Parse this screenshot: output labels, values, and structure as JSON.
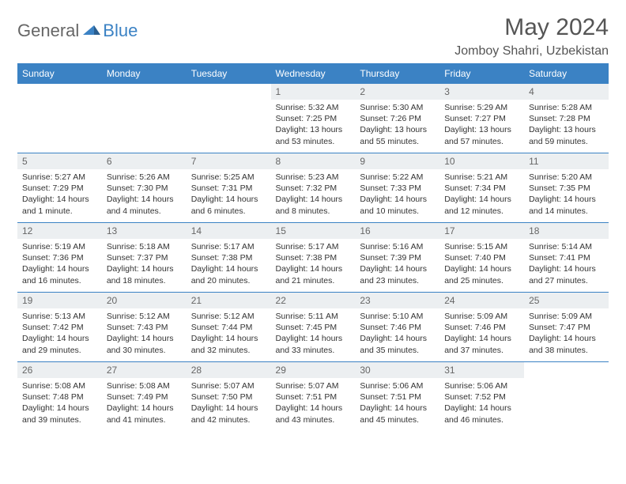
{
  "brand": {
    "part1": "General",
    "part2": "Blue",
    "accent": "#3b82c4"
  },
  "title": "May 2024",
  "location": "Jomboy Shahri, Uzbekistan",
  "dayHeaders": [
    "Sunday",
    "Monday",
    "Tuesday",
    "Wednesday",
    "Thursday",
    "Friday",
    "Saturday"
  ],
  "colors": {
    "headerBg": "#3b82c4",
    "headerText": "#ffffff",
    "dayNumBg": "#eceff1",
    "border": "#3b82c4",
    "bodyText": "#333333",
    "background": "#ffffff"
  },
  "typography": {
    "title_fontsize": 30,
    "location_fontsize": 16,
    "header_fontsize": 12,
    "daynum_fontsize": 12,
    "body_fontsize": 10.5
  },
  "startDayIndex": 3,
  "days": [
    {
      "n": "1",
      "sunrise": "Sunrise: 5:32 AM",
      "sunset": "Sunset: 7:25 PM",
      "daylight": "Daylight: 13 hours and 53 minutes."
    },
    {
      "n": "2",
      "sunrise": "Sunrise: 5:30 AM",
      "sunset": "Sunset: 7:26 PM",
      "daylight": "Daylight: 13 hours and 55 minutes."
    },
    {
      "n": "3",
      "sunrise": "Sunrise: 5:29 AM",
      "sunset": "Sunset: 7:27 PM",
      "daylight": "Daylight: 13 hours and 57 minutes."
    },
    {
      "n": "4",
      "sunrise": "Sunrise: 5:28 AM",
      "sunset": "Sunset: 7:28 PM",
      "daylight": "Daylight: 13 hours and 59 minutes."
    },
    {
      "n": "5",
      "sunrise": "Sunrise: 5:27 AM",
      "sunset": "Sunset: 7:29 PM",
      "daylight": "Daylight: 14 hours and 1 minute."
    },
    {
      "n": "6",
      "sunrise": "Sunrise: 5:26 AM",
      "sunset": "Sunset: 7:30 PM",
      "daylight": "Daylight: 14 hours and 4 minutes."
    },
    {
      "n": "7",
      "sunrise": "Sunrise: 5:25 AM",
      "sunset": "Sunset: 7:31 PM",
      "daylight": "Daylight: 14 hours and 6 minutes."
    },
    {
      "n": "8",
      "sunrise": "Sunrise: 5:23 AM",
      "sunset": "Sunset: 7:32 PM",
      "daylight": "Daylight: 14 hours and 8 minutes."
    },
    {
      "n": "9",
      "sunrise": "Sunrise: 5:22 AM",
      "sunset": "Sunset: 7:33 PM",
      "daylight": "Daylight: 14 hours and 10 minutes."
    },
    {
      "n": "10",
      "sunrise": "Sunrise: 5:21 AM",
      "sunset": "Sunset: 7:34 PM",
      "daylight": "Daylight: 14 hours and 12 minutes."
    },
    {
      "n": "11",
      "sunrise": "Sunrise: 5:20 AM",
      "sunset": "Sunset: 7:35 PM",
      "daylight": "Daylight: 14 hours and 14 minutes."
    },
    {
      "n": "12",
      "sunrise": "Sunrise: 5:19 AM",
      "sunset": "Sunset: 7:36 PM",
      "daylight": "Daylight: 14 hours and 16 minutes."
    },
    {
      "n": "13",
      "sunrise": "Sunrise: 5:18 AM",
      "sunset": "Sunset: 7:37 PM",
      "daylight": "Daylight: 14 hours and 18 minutes."
    },
    {
      "n": "14",
      "sunrise": "Sunrise: 5:17 AM",
      "sunset": "Sunset: 7:38 PM",
      "daylight": "Daylight: 14 hours and 20 minutes."
    },
    {
      "n": "15",
      "sunrise": "Sunrise: 5:17 AM",
      "sunset": "Sunset: 7:38 PM",
      "daylight": "Daylight: 14 hours and 21 minutes."
    },
    {
      "n": "16",
      "sunrise": "Sunrise: 5:16 AM",
      "sunset": "Sunset: 7:39 PM",
      "daylight": "Daylight: 14 hours and 23 minutes."
    },
    {
      "n": "17",
      "sunrise": "Sunrise: 5:15 AM",
      "sunset": "Sunset: 7:40 PM",
      "daylight": "Daylight: 14 hours and 25 minutes."
    },
    {
      "n": "18",
      "sunrise": "Sunrise: 5:14 AM",
      "sunset": "Sunset: 7:41 PM",
      "daylight": "Daylight: 14 hours and 27 minutes."
    },
    {
      "n": "19",
      "sunrise": "Sunrise: 5:13 AM",
      "sunset": "Sunset: 7:42 PM",
      "daylight": "Daylight: 14 hours and 29 minutes."
    },
    {
      "n": "20",
      "sunrise": "Sunrise: 5:12 AM",
      "sunset": "Sunset: 7:43 PM",
      "daylight": "Daylight: 14 hours and 30 minutes."
    },
    {
      "n": "21",
      "sunrise": "Sunrise: 5:12 AM",
      "sunset": "Sunset: 7:44 PM",
      "daylight": "Daylight: 14 hours and 32 minutes."
    },
    {
      "n": "22",
      "sunrise": "Sunrise: 5:11 AM",
      "sunset": "Sunset: 7:45 PM",
      "daylight": "Daylight: 14 hours and 33 minutes."
    },
    {
      "n": "23",
      "sunrise": "Sunrise: 5:10 AM",
      "sunset": "Sunset: 7:46 PM",
      "daylight": "Daylight: 14 hours and 35 minutes."
    },
    {
      "n": "24",
      "sunrise": "Sunrise: 5:09 AM",
      "sunset": "Sunset: 7:46 PM",
      "daylight": "Daylight: 14 hours and 37 minutes."
    },
    {
      "n": "25",
      "sunrise": "Sunrise: 5:09 AM",
      "sunset": "Sunset: 7:47 PM",
      "daylight": "Daylight: 14 hours and 38 minutes."
    },
    {
      "n": "26",
      "sunrise": "Sunrise: 5:08 AM",
      "sunset": "Sunset: 7:48 PM",
      "daylight": "Daylight: 14 hours and 39 minutes."
    },
    {
      "n": "27",
      "sunrise": "Sunrise: 5:08 AM",
      "sunset": "Sunset: 7:49 PM",
      "daylight": "Daylight: 14 hours and 41 minutes."
    },
    {
      "n": "28",
      "sunrise": "Sunrise: 5:07 AM",
      "sunset": "Sunset: 7:50 PM",
      "daylight": "Daylight: 14 hours and 42 minutes."
    },
    {
      "n": "29",
      "sunrise": "Sunrise: 5:07 AM",
      "sunset": "Sunset: 7:51 PM",
      "daylight": "Daylight: 14 hours and 43 minutes."
    },
    {
      "n": "30",
      "sunrise": "Sunrise: 5:06 AM",
      "sunset": "Sunset: 7:51 PM",
      "daylight": "Daylight: 14 hours and 45 minutes."
    },
    {
      "n": "31",
      "sunrise": "Sunrise: 5:06 AM",
      "sunset": "Sunset: 7:52 PM",
      "daylight": "Daylight: 14 hours and 46 minutes."
    }
  ]
}
